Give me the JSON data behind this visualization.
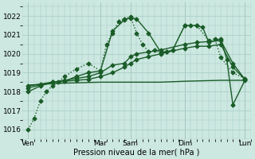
{
  "background_color": "#cce8e0",
  "grid_color": "#aacfc8",
  "line_color": "#1a5c28",
  "xlabel": "Pression niveau de la mer( hPa )",
  "ylim": [
    1015.5,
    1022.7
  ],
  "yticks": [
    1016,
    1017,
    1018,
    1019,
    1020,
    1021,
    1022
  ],
  "xlim": [
    0,
    19
  ],
  "day_labels": [
    "Ven",
    "",
    "Mar",
    "Sam",
    "",
    "Dim",
    "",
    "Lun"
  ],
  "day_tick_positions": [
    0.5,
    6.5,
    9.0,
    13.5,
    18.5
  ],
  "day_tick_labels": [
    "Ven",
    "Mar",
    "Sam",
    "Dim",
    "Lun"
  ],
  "series": [
    {
      "x": [
        0.5,
        1.0,
        1.5,
        2.0,
        2.5,
        3.0,
        3.5,
        4.5,
        5.5,
        6.5,
        7.0,
        7.5,
        8.0,
        8.5,
        9.0,
        9.5,
        10.0,
        10.5,
        11.0,
        11.5,
        12.0,
        12.5,
        13.5,
        14.0,
        14.5,
        15.5,
        16.0,
        16.5,
        17.5,
        18.5
      ],
      "y": [
        1016.0,
        1016.6,
        1017.5,
        1018.0,
        1018.3,
        1018.5,
        1018.8,
        1019.2,
        1019.5,
        1019.1,
        1020.5,
        1021.1,
        1021.7,
        1021.85,
        1021.95,
        1021.1,
        1020.5,
        1020.1,
        1020.2,
        1020.05,
        1020.1,
        1020.2,
        1021.5,
        1021.5,
        1021.5,
        1020.7,
        1020.8,
        1019.8,
        1019.0,
        1018.7
      ],
      "dotted": true,
      "marker": "D",
      "markersize": 2.5,
      "linewidth": 1.0
    },
    {
      "x": [
        0.5,
        1.5,
        2.5,
        3.5,
        4.5,
        5.5,
        6.5,
        7.5,
        8.5,
        9.0,
        9.5,
        10.5,
        11.5,
        12.0,
        12.5,
        13.5,
        14.5,
        15.0,
        15.5,
        16.5,
        17.0,
        17.5,
        18.5
      ],
      "y": [
        1018.0,
        1018.3,
        1018.5,
        1018.55,
        1018.8,
        1019.0,
        1019.1,
        1021.2,
        1021.8,
        1021.9,
        1021.85,
        1021.1,
        1020.1,
        1020.1,
        1020.2,
        1021.5,
        1021.5,
        1021.4,
        1020.6,
        1020.8,
        1019.7,
        1017.3,
        1018.6
      ],
      "dotted": false,
      "marker": "D",
      "markersize": 2.5,
      "linewidth": 1.0
    },
    {
      "x": [
        0.5,
        1.5,
        2.5,
        3.5,
        4.5,
        5.5,
        6.5,
        7.5,
        8.5,
        9.0,
        9.5,
        10.5,
        11.5,
        13.5,
        14.5,
        15.5,
        16.5,
        17.5,
        18.5
      ],
      "y": [
        1018.2,
        1018.35,
        1018.5,
        1018.6,
        1018.7,
        1018.8,
        1019.0,
        1019.4,
        1019.5,
        1019.85,
        1020.0,
        1020.1,
        1020.2,
        1020.5,
        1020.6,
        1020.65,
        1020.7,
        1019.5,
        1018.65
      ],
      "dotted": false,
      "marker": "D",
      "markersize": 2.5,
      "linewidth": 1.0
    },
    {
      "x": [
        0.5,
        1.5,
        2.5,
        3.5,
        4.5,
        5.5,
        6.5,
        7.5,
        8.5,
        9.0,
        9.5,
        10.5,
        11.5,
        13.5,
        14.5,
        15.5,
        16.5,
        17.5,
        18.5
      ],
      "y": [
        1018.3,
        1018.4,
        1018.5,
        1018.55,
        1018.6,
        1018.65,
        1018.8,
        1019.0,
        1019.3,
        1019.5,
        1019.7,
        1019.85,
        1020.0,
        1020.3,
        1020.4,
        1020.4,
        1020.5,
        1019.3,
        1018.65
      ],
      "dotted": false,
      "marker": "D",
      "markersize": 2.5,
      "linewidth": 1.0
    },
    {
      "x": [
        0.5,
        3.5,
        6.5,
        9.0,
        11.5,
        13.5,
        16.5,
        18.5
      ],
      "y": [
        1018.35,
        1018.45,
        1018.5,
        1018.5,
        1018.5,
        1018.55,
        1018.6,
        1018.6
      ],
      "dotted": false,
      "marker": null,
      "markersize": 0,
      "linewidth": 1.0
    }
  ]
}
